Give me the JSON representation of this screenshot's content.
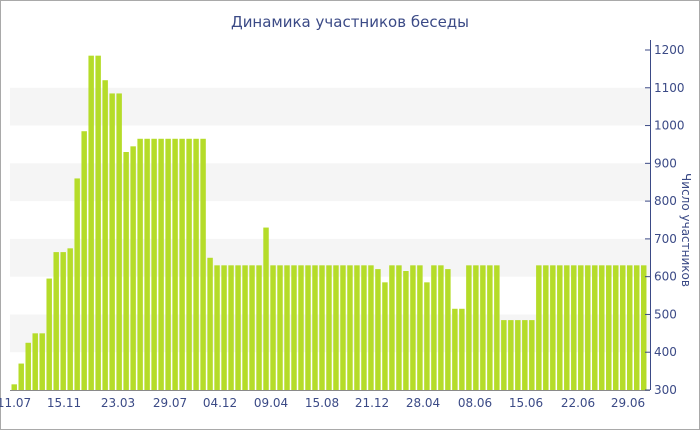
{
  "chart_data": {
    "type": "bar",
    "title": "Динамика участников беседы",
    "ylabel": "Число участников",
    "xlabel": "",
    "ylim": [
      300,
      1200
    ],
    "yticks": [
      300,
      400,
      500,
      600,
      700,
      800,
      900,
      1000,
      1100,
      1200
    ],
    "xtick_labels": [
      "11.07",
      "15.11",
      "23.03",
      "29.07",
      "04.12",
      "09.04",
      "15.08",
      "21.12",
      "28.04",
      "08.06",
      "15.06",
      "22.06",
      "29.06"
    ],
    "grid": "alternating horizontal bands",
    "bar_color": "#b5dc29",
    "values": [
      315,
      370,
      425,
      450,
      450,
      595,
      665,
      665,
      675,
      860,
      985,
      1185,
      1185,
      1120,
      1085,
      1085,
      930,
      945,
      965,
      965,
      965,
      965,
      965,
      965,
      965,
      965,
      965,
      965,
      650,
      630,
      630,
      630,
      630,
      630,
      630,
      630,
      730,
      630,
      630,
      630,
      630,
      630,
      630,
      630,
      630,
      630,
      630,
      630,
      630,
      630,
      630,
      630,
      620,
      585,
      630,
      630,
      615,
      630,
      630,
      585,
      630,
      630,
      620,
      515,
      515,
      630,
      630,
      630,
      630,
      630,
      485,
      485,
      485,
      485,
      485,
      630,
      630,
      630,
      630,
      630,
      630,
      630,
      630,
      630,
      630,
      630,
      630,
      630,
      630,
      630,
      630
    ]
  }
}
